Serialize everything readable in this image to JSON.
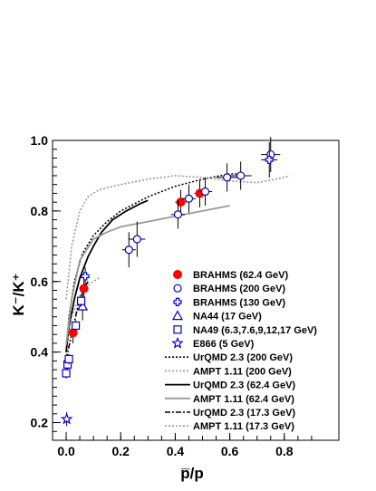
{
  "chart_data": {
    "type": "scatter",
    "xlabel": "p̅/p",
    "ylabel": "K⁻/K⁺",
    "xlim": [
      -0.05,
      1.0
    ],
    "ylim": [
      0.15,
      1.0
    ],
    "x_ticks": [
      0,
      0.2,
      0.4,
      0.6,
      0.8
    ],
    "x_tick_labels": [
      "0.0",
      "0.2",
      "0.4",
      "0.6",
      "0.8"
    ],
    "y_ticks": [
      0.2,
      0.4,
      0.6,
      0.8,
      1.0
    ],
    "y_tick_labels": [
      "0.2",
      "0.4",
      "0.6",
      "0.8",
      "1.0"
    ],
    "legend_position": "bottom-right",
    "series": [
      {
        "name": "BRAHMS (62.4 GeV)",
        "marker": "filled-circle",
        "color": "#ff0000",
        "points": [
          {
            "x": 0.025,
            "y": 0.455,
            "yerr": 0.03,
            "xerr": 0.005
          },
          {
            "x": 0.065,
            "y": 0.58,
            "yerr": 0.03,
            "xerr": 0.006
          },
          {
            "x": 0.42,
            "y": 0.825,
            "yerr": 0.035,
            "xerr": 0.02
          },
          {
            "x": 0.49,
            "y": 0.85,
            "yerr": 0.04,
            "xerr": 0.02
          }
        ]
      },
      {
        "name": "BRAHMS (200 GeV)",
        "marker": "open-circle",
        "color": "#0000cc",
        "points": [
          {
            "x": 0.23,
            "y": 0.69,
            "yerr": 0.05,
            "xerr": 0.025
          },
          {
            "x": 0.26,
            "y": 0.72,
            "yerr": 0.05,
            "xerr": 0.03
          },
          {
            "x": 0.41,
            "y": 0.79,
            "yerr": 0.04,
            "xerr": 0.025
          },
          {
            "x": 0.45,
            "y": 0.835,
            "yerr": 0.04,
            "xerr": 0.025
          },
          {
            "x": 0.51,
            "y": 0.855,
            "yerr": 0.04,
            "xerr": 0.025
          },
          {
            "x": 0.59,
            "y": 0.895,
            "yerr": 0.04,
            "xerr": 0.04
          },
          {
            "x": 0.64,
            "y": 0.9,
            "yerr": 0.04,
            "xerr": 0.04
          },
          {
            "x": 0.75,
            "y": 0.96,
            "yerr": 0.05,
            "xerr": 0.035
          }
        ]
      },
      {
        "name": "BRAHMS (130 GeV)",
        "marker": "open-cross",
        "color": "#0000cc",
        "points": [
          {
            "x": 0.07,
            "y": 0.615,
            "yerr": 0.025,
            "xerr": 0.008
          },
          {
            "x": 0.745,
            "y": 0.945,
            "yerr": 0.05,
            "xerr": 0.03
          }
        ]
      },
      {
        "name": "NA44 (17 GeV)",
        "marker": "open-triangle",
        "color": "#0000cc",
        "points": [
          {
            "x": 0.06,
            "y": 0.53,
            "yerr": 0.04,
            "xerr": 0.006
          }
        ]
      },
      {
        "name": "NA49 (6.3,7.6,9,12,17 GeV)",
        "marker": "open-square",
        "color": "#0000cc",
        "points": [
          {
            "x": 0.0,
            "y": 0.34,
            "yerr": 0.015,
            "xerr": 0.002
          },
          {
            "x": 0.005,
            "y": 0.365,
            "yerr": 0.015,
            "xerr": 0.002
          },
          {
            "x": 0.01,
            "y": 0.38,
            "yerr": 0.015,
            "xerr": 0.002
          },
          {
            "x": 0.035,
            "y": 0.475,
            "yerr": 0.015,
            "xerr": 0.004
          },
          {
            "x": 0.055,
            "y": 0.545,
            "yerr": 0.015,
            "xerr": 0.005
          }
        ]
      },
      {
        "name": "E866 (5 GeV)",
        "marker": "open-star",
        "color": "#0000cc",
        "points": [
          {
            "x": 0.002,
            "y": 0.21,
            "yerr": 0.02,
            "xerr": 0.001
          }
        ]
      }
    ],
    "curves": [
      {
        "name": "UrQMD 2.3 (200 GeV)",
        "style": "dotted",
        "color": "#000000",
        "width": 1.6,
        "x": [
          0.0,
          0.01,
          0.03,
          0.06,
          0.1,
          0.15,
          0.2,
          0.3,
          0.4,
          0.5,
          0.6,
          0.65
        ],
        "y": [
          0.4,
          0.5,
          0.6,
          0.68,
          0.73,
          0.77,
          0.8,
          0.84,
          0.87,
          0.89,
          0.905,
          0.905
        ]
      },
      {
        "name": "AMPT 1.11 (200 GeV)",
        "style": "dotted",
        "color": "#999999",
        "width": 1.6,
        "x": [
          0.0,
          0.02,
          0.05,
          0.08,
          0.12,
          0.2,
          0.3,
          0.4,
          0.5,
          0.6,
          0.7,
          0.8,
          0.82
        ],
        "y": [
          0.55,
          0.7,
          0.8,
          0.84,
          0.86,
          0.875,
          0.89,
          0.9,
          0.895,
          0.885,
          0.88,
          0.895,
          0.9
        ]
      },
      {
        "name": "UrQMD 2.3 (62.4 GeV)",
        "style": "solid",
        "color": "#000000",
        "width": 1.8,
        "x": [
          0.0,
          0.01,
          0.03,
          0.05,
          0.08,
          0.1,
          0.13,
          0.17,
          0.22,
          0.27,
          0.3
        ],
        "y": [
          0.4,
          0.47,
          0.55,
          0.61,
          0.67,
          0.7,
          0.74,
          0.775,
          0.8,
          0.82,
          0.83
        ]
      },
      {
        "name": "AMPT 1.11 (62.4 GeV)",
        "style": "solid",
        "color": "#999999",
        "width": 1.8,
        "x": [
          0.0,
          0.02,
          0.05,
          0.1,
          0.15,
          0.2,
          0.3,
          0.4,
          0.5,
          0.6
        ],
        "y": [
          0.42,
          0.55,
          0.66,
          0.72,
          0.74,
          0.755,
          0.77,
          0.785,
          0.8,
          0.815
        ]
      },
      {
        "name": "UrQMD 2.3 (17.3 GeV)",
        "style": "dashdot",
        "color": "#000000",
        "width": 1.6,
        "x": [
          0.0,
          0.02,
          0.04,
          0.06,
          0.08
        ],
        "y": [
          0.38,
          0.45,
          0.52,
          0.57,
          0.6
        ]
      },
      {
        "name": "AMPT 1.11 (17.3 GeV)",
        "style": "dotted",
        "color": "#999999",
        "width": 1.6,
        "x": [
          0.0,
          0.02,
          0.05,
          0.08,
          0.1,
          0.12
        ],
        "y": [
          0.42,
          0.5,
          0.56,
          0.59,
          0.6,
          0.61
        ]
      }
    ],
    "legend_order": [
      "BRAHMS (62.4 GeV)",
      "BRAHMS (200 GeV)",
      "BRAHMS (130 GeV)",
      "NA44 (17 GeV)",
      "NA49 (6.3,7.6,9,12,17 GeV)",
      "E866 (5 GeV)",
      "UrQMD 2.3 (200 GeV)",
      "AMPT 1.11 (200 GeV)",
      "UrQMD 2.3 (62.4 GeV)",
      "AMPT 1.11 (62.4 GeV)",
      "UrQMD 2.3 (17.3 GeV)",
      "AMPT 1.11 (17.3 GeV)"
    ]
  }
}
